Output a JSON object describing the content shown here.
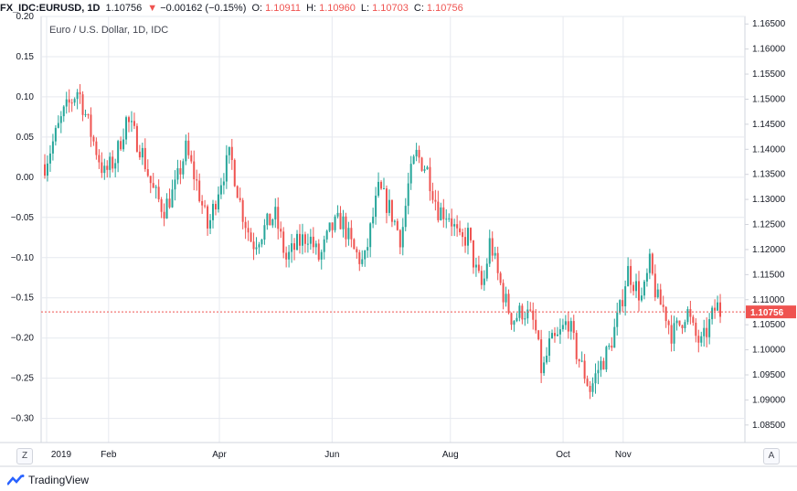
{
  "header": {
    "symbol": "FX_IDC:EURUSD, 1D",
    "last": "1.10756",
    "change": "−0.00162 (−0.15%)",
    "o_label": "O:",
    "o_value": "1.10911",
    "h_label": "H:",
    "h_value": "1.10960",
    "l_label": "L:",
    "l_value": "1.10703",
    "c_label": "C:",
    "c_value": "1.10756"
  },
  "series_label": "Euro / U.S. Dollar, 1D, IDC",
  "price_tag": "1.10756",
  "buttons": {
    "zoom": "Z",
    "auto": "A"
  },
  "brand": "TradingView",
  "colors": {
    "up": "#26a69a",
    "down": "#ef5350",
    "price_line": "#ef5350",
    "grid": "#e6e9ef"
  },
  "chart_data": {
    "type": "candlestick",
    "x_tick_labels": [
      "2019",
      "Feb",
      "Apr",
      "Jun",
      "Aug",
      "Oct",
      "Nov"
    ],
    "left_axis": {
      "ticks": [
        "0.20",
        "0.15",
        "0.10",
        "0.05",
        "0.00",
        "−0.05",
        "−0.10",
        "−0.15",
        "−0.20",
        "−0.25",
        "−0.30"
      ],
      "range": [
        -0.33,
        0.2
      ]
    },
    "right_axis": {
      "ticks": [
        "1.16500",
        "1.16000",
        "1.15500",
        "1.15000",
        "1.14500",
        "1.14000",
        "1.13500",
        "1.13000",
        "1.12500",
        "1.12000",
        "1.11500",
        "1.11000",
        "1.10500",
        "1.10000",
        "1.09500",
        "1.09000",
        "1.08500"
      ],
      "range": [
        1.0815,
        1.1665
      ]
    },
    "current_price": 1.10756,
    "close_path": [
      [
        0,
        1.137
      ],
      [
        10,
        1.147
      ],
      [
        18,
        1.152
      ],
      [
        25,
        1.143
      ],
      [
        32,
        1.135
      ],
      [
        38,
        1.138
      ],
      [
        44,
        1.146
      ],
      [
        52,
        1.14
      ],
      [
        58,
        1.132
      ],
      [
        64,
        1.128
      ],
      [
        70,
        1.132
      ],
      [
        76,
        1.14
      ],
      [
        82,
        1.133
      ],
      [
        88,
        1.124
      ],
      [
        94,
        1.133
      ],
      [
        100,
        1.139
      ],
      [
        106,
        1.128
      ],
      [
        112,
        1.121
      ],
      [
        118,
        1.124
      ],
      [
        124,
        1.127
      ],
      [
        130,
        1.118
      ],
      [
        136,
        1.121
      ],
      [
        142,
        1.123
      ],
      [
        148,
        1.118
      ],
      [
        154,
        1.124
      ],
      [
        160,
        1.126
      ],
      [
        166,
        1.12
      ],
      [
        172,
        1.117
      ],
      [
        176,
        1.125
      ],
      [
        180,
        1.132
      ],
      [
        186,
        1.128
      ],
      [
        192,
        1.122
      ],
      [
        196,
        1.133
      ],
      [
        200,
        1.139
      ],
      [
        206,
        1.136
      ],
      [
        212,
        1.128
      ],
      [
        218,
        1.127
      ],
      [
        224,
        1.121
      ],
      [
        228,
        1.123
      ],
      [
        232,
        1.116
      ],
      [
        236,
        1.112
      ],
      [
        240,
        1.122
      ],
      [
        244,
        1.115
      ],
      [
        248,
        1.11
      ],
      [
        252,
        1.106
      ],
      [
        258,
        1.108
      ],
      [
        264,
        1.105
      ],
      [
        268,
        1.095
      ],
      [
        272,
        1.101
      ],
      [
        276,
        1.102
      ],
      [
        282,
        1.106
      ],
      [
        286,
        1.1
      ],
      [
        290,
        1.096
      ],
      [
        294,
        1.092
      ],
      [
        298,
        1.096
      ],
      [
        304,
        1.1
      ],
      [
        310,
        1.108
      ],
      [
        314,
        1.116
      ],
      [
        318,
        1.113
      ],
      [
        322,
        1.11
      ],
      [
        326,
        1.117
      ],
      [
        330,
        1.11
      ],
      [
        334,
        1.108
      ],
      [
        338,
        1.103
      ],
      [
        342,
        1.105
      ],
      [
        346,
        1.108
      ],
      [
        350,
        1.103
      ],
      [
        354,
        1.101
      ],
      [
        358,
        1.105
      ],
      [
        362,
        1.109
      ],
      [
        364,
        1.1075
      ]
    ]
  }
}
